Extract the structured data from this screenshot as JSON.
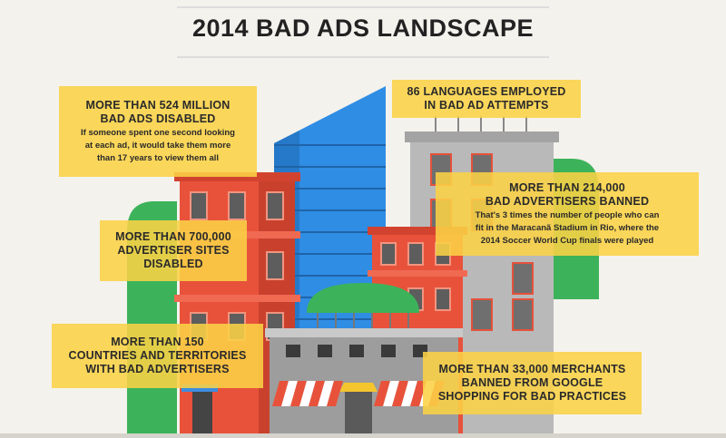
{
  "header": {
    "title": "2014 BAD ADS LANDSCAPE"
  },
  "callouts": [
    {
      "heading": [
        "MORE THAN 524 MILLION",
        "BAD ADS DISABLED"
      ],
      "body": [
        "If someone spent one second looking",
        "at each ad, it would take them more",
        "than 17 years to view them all"
      ]
    },
    {
      "heading": [
        "86 LANGUAGES EMPLOYED",
        "IN BAD AD ATTEMPTS"
      ],
      "body": []
    },
    {
      "heading": [
        "MORE THAN 214,000",
        "BAD ADVERTISERS BANNED"
      ],
      "body": [
        "That's 3 times the number of people who can",
        "fit in the Maracanã Stadium in Rio, where the",
        "2014 Soccer World Cup finals were played"
      ]
    },
    {
      "heading": [
        "MORE THAN 700,000",
        "ADVERTISER SITES",
        "DISABLED"
      ],
      "body": []
    },
    {
      "heading": [
        "MORE THAN 150",
        "COUNTRIES AND TERRITORIES",
        "WITH BAD ADVERTISERS"
      ],
      "body": []
    },
    {
      "heading": [
        "MORE THAN 33,000 MERCHANTS",
        "BANNED FROM GOOGLE",
        "SHOPPING FOR BAD PRACTICES"
      ],
      "body": []
    }
  ]
}
